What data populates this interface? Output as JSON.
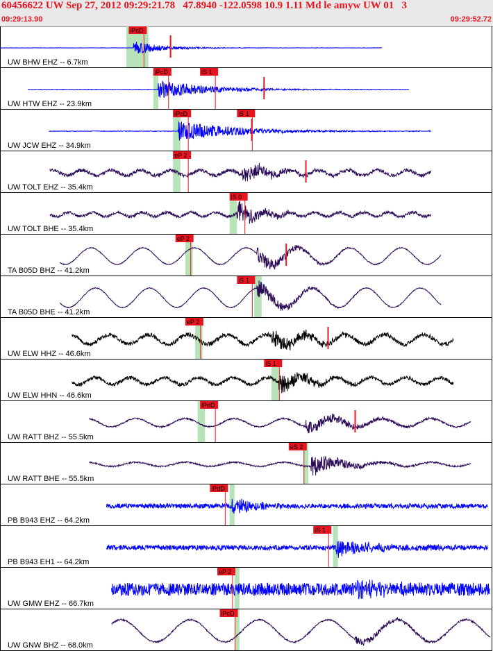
{
  "header": {
    "title": "60456622 UW Sep 27, 2012 09:29:21.78   47.8940 -122.0598 10.9 1.11 Md le amyw UW 01   3",
    "time_start": "09:29:13.90",
    "time_end": "09:29:52.72"
  },
  "colors": {
    "header_text": "#e8141f",
    "pick_box": "#e8141f",
    "window_band": "#b8e2b8",
    "trace_blue": "#0000ff",
    "trace_purple": "#2a0a55",
    "trace_black": "#000000"
  },
  "traces": [
    {
      "label": "UW BHW EHZ -- 6.7km",
      "color": "blue",
      "amp": 1.2,
      "start": 0.0,
      "end": 0.775,
      "seed": 1,
      "noise": 0.25,
      "burst": {
        "at": 0.27,
        "amp": 10,
        "decay": 0.06
      },
      "wave": null,
      "picks": [
        {
          "text": "iPcD",
          "pos": 0.26
        }
      ],
      "band": [
        0.255,
        0.3
      ],
      "spike": 0.345
    },
    {
      "label": "UW HTW EHZ -- 23.9km",
      "color": "blue",
      "amp": 1.0,
      "start": 0.055,
      "end": 0.83,
      "seed": 2,
      "noise": 0.4,
      "burst": {
        "at": 0.32,
        "amp": 14,
        "decay": 0.1
      },
      "wave": null,
      "picks": [
        {
          "text": "iPcD",
          "pos": 0.31
        },
        {
          "text": "iS 1",
          "pos": 0.405
        }
      ],
      "band": [
        0.31,
        0.32
      ],
      "spike": 0.535
    },
    {
      "label": "UW JCW EHZ -- 34.9km",
      "color": "blue",
      "amp": 1.0,
      "start": 0.098,
      "end": 0.875,
      "seed": 3,
      "noise": 0.4,
      "burst": {
        "at": 0.36,
        "amp": 15,
        "decay": 0.12
      },
      "wave": null,
      "picks": [
        {
          "text": "iPcD",
          "pos": 0.35
        },
        {
          "text": "iS 1",
          "pos": 0.48
        }
      ],
      "band": [
        0.35,
        0.365
      ],
      "spike": 0.51
    },
    {
      "label": "UW TOLT EHZ -- 35.4km",
      "color": "purple",
      "amp": 1.0,
      "start": 0.1,
      "end": 0.875,
      "seed": 4,
      "noise": 2.5,
      "burst": {
        "at": 0.49,
        "amp": 14,
        "decay": 0.06
      },
      "wave": {
        "amp": 4,
        "period": 0.06
      },
      "picks": [
        {
          "text": "eP 2",
          "pos": 0.35
        }
      ],
      "band": [
        0.35,
        0.365
      ],
      "spike": 0.62
    },
    {
      "label": "UW TOLT BHE -- 35.4km",
      "color": "purple",
      "amp": 1.0,
      "start": 0.1,
      "end": 0.875,
      "seed": 5,
      "noise": 2.0,
      "burst": {
        "at": 0.48,
        "amp": 18,
        "decay": 0.05
      },
      "wave": {
        "amp": 3,
        "period": 0.05
      },
      "picks": [
        {
          "text": "iS 0",
          "pos": 0.465
        }
      ],
      "band": [
        0.465,
        0.48
      ],
      "spike": null
    },
    {
      "label": "TA B05D BHZ -- 41.2km",
      "color": "purple",
      "amp": 1.0,
      "start": 0.12,
      "end": 0.895,
      "seed": 6,
      "noise": 0.6,
      "burst": {
        "at": 0.52,
        "amp": 12,
        "decay": 0.07
      },
      "wave": {
        "amp": 12,
        "period": 0.105
      },
      "picks": [
        {
          "text": "eP 2",
          "pos": 0.355
        }
      ],
      "band": [
        0.375,
        0.39
      ],
      "spike": 0.58
    },
    {
      "label": "TA B05D BHE -- 41.2km",
      "color": "purple",
      "amp": 1.0,
      "start": 0.12,
      "end": 0.895,
      "seed": 7,
      "noise": 0.6,
      "burst": {
        "at": 0.52,
        "amp": 14,
        "decay": 0.06
      },
      "wave": {
        "amp": 14,
        "period": 0.11
      },
      "picks": [
        {
          "text": "iS 1",
          "pos": 0.48
        }
      ],
      "band": [
        0.515,
        0.53
      ],
      "spike": null
    },
    {
      "label": "UW ELW HHZ -- 46.6km",
      "color": "black",
      "amp": 1.0,
      "start": 0.145,
      "end": 0.92,
      "seed": 8,
      "noise": 3.0,
      "burst": {
        "at": 0.55,
        "amp": 12,
        "decay": 0.08
      },
      "wave": {
        "amp": 7,
        "period": 0.08
      },
      "picks": [
        {
          "text": "eP 2",
          "pos": 0.375
        }
      ],
      "band": [
        0.395,
        0.41
      ],
      "spike": 0.665
    },
    {
      "label": "UW ELW HHN -- 46.6km",
      "color": "black",
      "amp": 1.0,
      "start": 0.145,
      "end": 0.92,
      "seed": 9,
      "noise": 2.5,
      "burst": {
        "at": 0.565,
        "amp": 16,
        "decay": 0.06
      },
      "wave": {
        "amp": 5,
        "period": 0.07
      },
      "picks": [
        {
          "text": "iS 1",
          "pos": 0.535
        }
      ],
      "band": [
        0.55,
        0.565
      ],
      "spike": null
    },
    {
      "label": "UW RATT BHZ -- 55.5km",
      "color": "purple",
      "amp": 1.0,
      "start": 0.18,
      "end": 0.955,
      "seed": 10,
      "noise": 1.0,
      "burst": {
        "at": 0.62,
        "amp": 11,
        "decay": 0.1
      },
      "wave": {
        "amp": 6,
        "period": 0.1
      },
      "picks": [
        {
          "text": "iPdD",
          "pos": 0.405
        }
      ],
      "band": [
        0.4,
        0.415
      ],
      "spike": 0.72
    },
    {
      "label": "UW RATT BHE -- 55.5km",
      "color": "purple",
      "amp": 1.0,
      "start": 0.18,
      "end": 0.955,
      "seed": 11,
      "noise": 1.0,
      "burst": {
        "at": 0.63,
        "amp": 16,
        "decay": 0.07
      },
      "wave": {
        "amp": 3,
        "period": 0.1
      },
      "picks": [
        {
          "text": "eS 2",
          "pos": 0.585
        }
      ],
      "band": [
        0.615,
        0.625
      ],
      "spike": null
    },
    {
      "label": "PB B943 EHZ -- 64.2km",
      "color": "blue",
      "amp": 1.0,
      "start": 0.215,
      "end": 0.99,
      "seed": 12,
      "noise": 3.5,
      "burst": {
        "at": 0.47,
        "amp": 12,
        "decay": 0.05
      },
      "wave": null,
      "picks": [
        {
          "text": "iPdD",
          "pos": 0.425
        }
      ],
      "band": [
        0.465,
        0.475
      ],
      "spike": null
    },
    {
      "label": "PB B943 EH1 -- 64.2km",
      "color": "blue",
      "amp": 1.0,
      "start": 0.215,
      "end": 0.99,
      "seed": 13,
      "noise": 3.5,
      "burst": {
        "at": 0.68,
        "amp": 14,
        "decay": 0.08
      },
      "wave": null,
      "picks": [
        {
          "text": "iS 1",
          "pos": 0.635
        }
      ],
      "band": [
        0.675,
        0.685
      ],
      "spike": null
    },
    {
      "label": "UW GMW EHZ -- 66.7km",
      "color": "blue",
      "amp": 1.0,
      "start": 0.225,
      "end": 0.995,
      "seed": 14,
      "noise": 9.0,
      "burst": {
        "at": 0.72,
        "amp": 8,
        "decay": 0.1
      },
      "wave": null,
      "picks": [
        {
          "text": "eP 2",
          "pos": 0.44
        }
      ],
      "band": [
        0.475,
        0.485
      ],
      "spike": null
    },
    {
      "label": "UW GNW BHZ -- 68.0km",
      "color": "purple",
      "amp": 1.0,
      "start": 0.225,
      "end": 0.995,
      "seed": 15,
      "noise": 1.0,
      "burst": {
        "at": 0.72,
        "amp": 6,
        "decay": 0.1
      },
      "wave": {
        "amp": 16,
        "period": 0.14
      },
      "picks": [
        {
          "text": "iPcD",
          "pos": 0.445
        }
      ],
      "band": [
        0.475,
        0.485
      ],
      "spike": null
    }
  ]
}
